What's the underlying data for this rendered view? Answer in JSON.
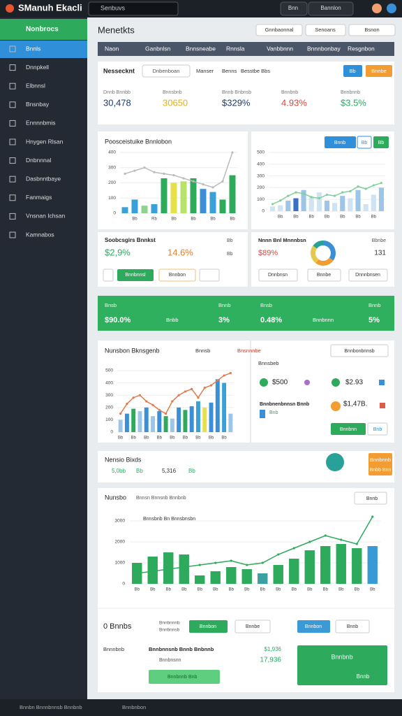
{
  "topbar": {
    "brand": "SManuh Ekacli",
    "search": "Senbuvs",
    "chip": "Bnn",
    "user_menu": "Bannlon"
  },
  "sidebar": {
    "header": "Nonbrocs",
    "items": [
      "Bnnls",
      "Dnnpkell",
      "Elbnnsl",
      "Bnsnbay",
      "Ennnnbmis",
      "Hnygen Rlsan",
      "Dnbnnnal",
      "Dasbnntbaye",
      "Fanmaigs",
      "Vnsnan Ichsan",
      "Kamnabos"
    ]
  },
  "header": {
    "title": "Menetkts",
    "buttons": [
      "Gnnbaonnal",
      "Senoans",
      "Bsnon"
    ]
  },
  "tabs": [
    "Naon",
    "Ganbnlsn",
    "Bnnsneabe",
    "Rnnsla",
    "Vanbbnnn",
    "Bnnnbonbay",
    "Resgnbon"
  ],
  "kpi": {
    "title": "Nessecknt",
    "dropdown": "Dnbenboan",
    "links": [
      "Manser",
      "Benns",
      "Besstbe Bbs"
    ],
    "buttons": [
      "Bb",
      "Bnnbe"
    ],
    "items": [
      {
        "label": "Dnnb Bnnbb",
        "value": "30,478"
      },
      {
        "label": "Bnnsbnb",
        "value": "30650"
      },
      {
        "label": "Bnnb Bnbnsb",
        "value": "$329%"
      },
      {
        "label": "Bnnbnb",
        "value": "4.93%"
      },
      {
        "label": "Bnnbnnb",
        "value": "$3.5%"
      }
    ]
  },
  "panel1": {
    "title": "Poosceistuike Bnnlobon",
    "buttons": [
      "Bnnb",
      "Bb",
      "Bb"
    ]
  },
  "stats": {
    "title": "Soobcsgirs Bnnkst",
    "value_a": "$2,9%",
    "value_b": "14.6%",
    "tags": [
      "Bb",
      "Bb"
    ],
    "buttons": [
      "Bnnbnnsl",
      "Bnnbon"
    ]
  },
  "donut_card": {
    "title": "Nnnn Bnl Mnnnbsn",
    "value": "$89%",
    "side_label": "Bbnbe",
    "side_value": "131",
    "buttons": [
      "Dnnbnsn",
      "Bnnbe",
      "Dnnnbnsen"
    ]
  },
  "banner": {
    "items": [
      {
        "label": "Bnsb",
        "value": "$90.0%"
      },
      {
        "label": "Bnbb"
      },
      {
        "label": "Bnnb",
        "value": "3%"
      },
      {
        "label": "Bnsb",
        "value": "0.48%"
      },
      {
        "label": "Bnnbnnn"
      },
      {
        "label": "Bnnb",
        "value": "5%"
      }
    ]
  },
  "panel2": {
    "title": "Nunsbon Bknsgenb",
    "tags": [
      "Bnnsb",
      "Bnsnnnbe"
    ],
    "dropdown": "Bnnbonbnnsb",
    "side_title": "Bnnsbeb",
    "side_a": "$500",
    "side_b": "$2.93",
    "side_sub": "Bnnbnenbnnsn Bnnb",
    "side_c": "$1,47B.",
    "side_tag": "Bnb",
    "buttons": [
      "Bnnbnn",
      "Bnb"
    ]
  },
  "strip": {
    "title": "Nensio Bixds",
    "items": [
      "5,0bb",
      "Bb",
      "5,316",
      "Bb"
    ],
    "action": "Bnnbnnb",
    "action_sub": "Bnbb Bnn"
  },
  "panel3": {
    "title": "Nunsbo",
    "subtitle": "Bnnsn Bnnsnb Bnnbnb",
    "dropdown": "Bnnb",
    "legend": "Bnnsbnb Bn Bnnsbnsbn"
  },
  "footer_panel": {
    "title": "0 Bnnbs",
    "sub_a": "Bnnbnnnb",
    "sub_b": "Bnnbnnsb",
    "buttons": [
      "Bnnbon",
      "Bnnbe",
      "Bnnbon",
      "Bnnb"
    ],
    "row_label": "Bnnnbnb",
    "row_title": "Bnnbnnsnb Bnnb Bnbnnb",
    "row_sub": "Bnnbnsnn",
    "row_value": "$1,936",
    "row_value2": "17,936",
    "cta": "Bnnbnb",
    "cta_sub": "Bnnb",
    "light_button": "Bnnbnnb Bnb"
  },
  "statusbar": {
    "left": "Bnnbn Bnnnbnnsb Bnnbnb",
    "mid": "Bnnbnbon"
  },
  "chart_data": [
    {
      "type": "bar",
      "ylim": [
        0,
        400
      ],
      "yticks": [
        0,
        100,
        200,
        300,
        400
      ],
      "categories": [
        null,
        "Bb",
        null,
        "Rb",
        null,
        "Bb",
        null,
        "Bb",
        null,
        "Bb",
        null,
        "Bb"
      ],
      "series": [
        {
          "type": "bar",
          "colors": [
            "#3aa0d8",
            "#3aa0d8",
            "#8fd18f",
            "#3aa0d8",
            "#2eaa5c",
            "#e6e04a",
            "#b6e36a",
            "#2eaa5c",
            "#3a8fd6",
            "#3aa0d8",
            "#2eaa5c",
            "#2eaa5c"
          ],
          "values": [
            40,
            90,
            50,
            60,
            230,
            200,
            210,
            230,
            160,
            140,
            90,
            250
          ]
        },
        {
          "type": "line",
          "color": "#bbbbbb",
          "values": [
            260,
            280,
            300,
            270,
            260,
            250,
            230,
            210,
            190,
            170,
            210,
            400
          ]
        }
      ]
    },
    {
      "type": "bar",
      "ylim": [
        0,
        500
      ],
      "yticks": [
        0,
        100,
        200,
        300,
        400,
        500
      ],
      "categories": [
        null,
        "Bb",
        null,
        "Bb",
        null,
        "Bb",
        null,
        "Bb",
        null,
        "Bb",
        null,
        "Bb",
        null,
        "Bb",
        null
      ],
      "series": [
        {
          "type": "bar",
          "colors": [
            "#cfe3f3",
            "#cfe3f3",
            "#9cc5e8",
            "#3a6fc4",
            "#9cc5e8",
            "#cfe3f3",
            "#cfe3f3",
            "#9cc5e8",
            "#cfe3f3",
            "#9cc5e8",
            "#cfe3f3",
            "#9cc5e8",
            "#cfe3f3",
            "#cfe3f3",
            "#9cc5e8"
          ],
          "values": [
            40,
            50,
            90,
            110,
            180,
            120,
            160,
            90,
            70,
            130,
            110,
            180,
            60,
            140,
            200
          ]
        },
        {
          "type": "line",
          "color": "#7fcf9b",
          "values": [
            60,
            90,
            130,
            160,
            150,
            120,
            110,
            140,
            130,
            160,
            170,
            210,
            190,
            220,
            240
          ]
        }
      ]
    },
    {
      "type": "bar",
      "ylim": [
        0,
        500
      ],
      "yticks": [
        0,
        100,
        200,
        300,
        400,
        500
      ],
      "categories": [
        "Bb",
        null,
        "Bb",
        null,
        "Bb",
        null,
        "Bb",
        null,
        "Bb",
        null,
        "Bb",
        null,
        "Bb",
        null,
        "Bb",
        null,
        "Bb",
        null
      ],
      "series": [
        {
          "type": "bar",
          "colors": [
            "#9cc5e8",
            "#3a8fd6",
            "#2eaa5c",
            "#9cc5e8",
            "#3a8fd6",
            "#9cc5e8",
            "#3a8fd6",
            "#2eaa5c",
            "#9cc5e8",
            "#3a8fd6",
            "#2eaa5c",
            "#3a8fd6",
            "#3aa0d8",
            "#e6e04a",
            "#3a8fd6",
            "#3a8fd6",
            "#3aa0d8",
            "#9cc5e8"
          ],
          "values": [
            100,
            150,
            190,
            170,
            200,
            130,
            170,
            130,
            110,
            200,
            180,
            210,
            250,
            200,
            240,
            430,
            400,
            150
          ]
        },
        {
          "type": "line",
          "color": "#e07a4f",
          "values": [
            150,
            230,
            280,
            300,
            250,
            220,
            180,
            150,
            250,
            300,
            330,
            350,
            280,
            360,
            380,
            420,
            460,
            480
          ]
        }
      ]
    },
    {
      "type": "bar",
      "ylim": [
        0,
        3500
      ],
      "yticks": [
        0,
        1000,
        2000,
        3000
      ],
      "categories": [
        "Bb",
        "Bb",
        "Bb",
        "Bb",
        "Bb",
        "Bb",
        "Bb",
        "Bb",
        "Bb",
        "Bb",
        "Bb",
        "Bb",
        "Bb",
        "Bb",
        "Bb",
        "Bb"
      ],
      "series": [
        {
          "type": "bar",
          "colors": [
            "#2eaa5c",
            "#2eaa5c",
            "#2eaa5c",
            "#2eaa5c",
            "#2eaa5c",
            "#2eaa5c",
            "#2eaa5c",
            "#2eaa5c",
            "#3aa0a0",
            "#2eaa5c",
            "#2eaa5c",
            "#2eaa5c",
            "#2eaa5c",
            "#2eaa5c",
            "#2eaa5c",
            "#3a9ad6"
          ],
          "values": [
            1000,
            1300,
            1500,
            1400,
            400,
            600,
            800,
            700,
            500,
            900,
            1200,
            1600,
            1800,
            1900,
            1700,
            1800
          ]
        },
        {
          "type": "line",
          "color": "#2eaa5c",
          "values": [
            500,
            600,
            700,
            800,
            900,
            1000,
            1100,
            900,
            1000,
            1400,
            1700,
            2000,
            2300,
            2100,
            1900,
            3200
          ]
        }
      ]
    },
    {
      "type": "pie",
      "values": [
        35,
        25,
        25,
        15
      ],
      "colors": [
        "#3a8fd6",
        "#f39c32",
        "#e6c84a",
        "#2aa198"
      ]
    }
  ]
}
